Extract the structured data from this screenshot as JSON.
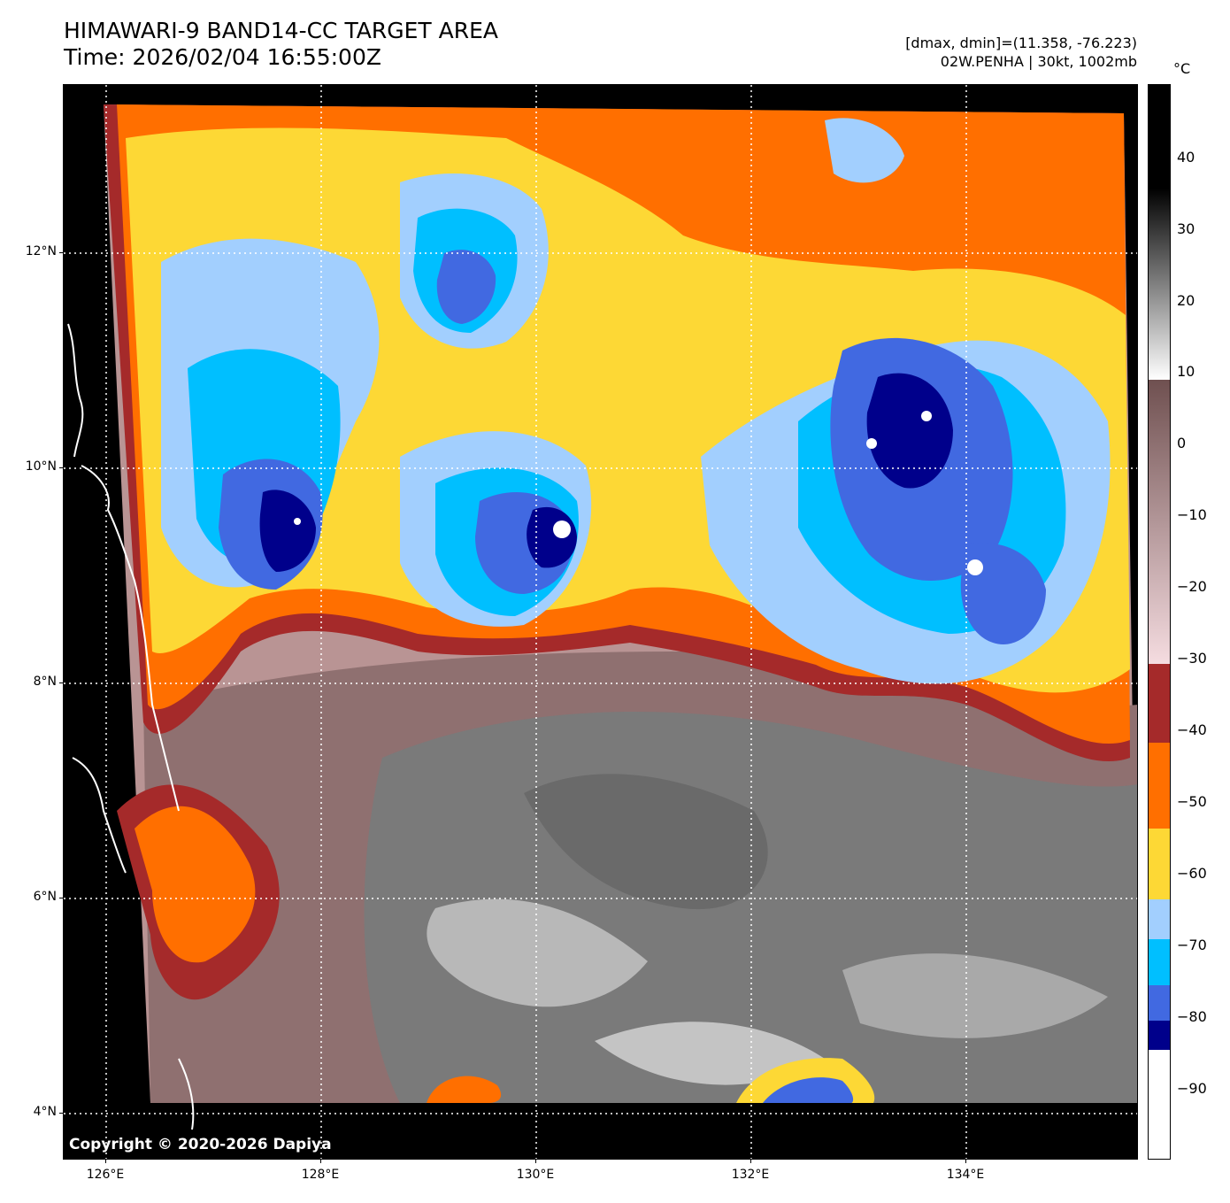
{
  "header": {
    "title_line1": "HIMAWARI-9 BAND14-CC TARGET AREA",
    "title_line2": "Time: 2026/02/04 16:55:00Z",
    "info_line1": "[dmax, dmin]=(11.358, -76.223)",
    "info_line2": "02W.PENHA | 30kt, 1002mb"
  },
  "map": {
    "copyright": "Copyright © 2020-2026 Dapiya",
    "lat_labels": [
      "12°N",
      "10°N",
      "8°N",
      "6°N",
      "4°N"
    ],
    "lon_labels": [
      "126°E",
      "128°E",
      "130°E",
      "132°E",
      "134°E"
    ],
    "coastline_color": "#ffffff",
    "grid_style": "dotted white"
  },
  "colorbar": {
    "unit": "°C",
    "tick_labels": [
      "40",
      "30",
      "20",
      "10",
      "0",
      "−10",
      "−20",
      "−30",
      "−40",
      "−50",
      "−60",
      "−70",
      "−80",
      "−90"
    ],
    "stops": [
      {
        "label": "< -80",
        "color": "#ffffff"
      },
      {
        "label": "-85",
        "color": "#00008b"
      },
      {
        "label": "-80",
        "color": "#4169e1"
      },
      {
        "label": "-70",
        "color": "#00bfff"
      },
      {
        "label": "-65",
        "color": "#a2cffe"
      },
      {
        "label": "-60",
        "color": "#fdd835"
      },
      {
        "label": "-50",
        "color": "#ff6f00"
      },
      {
        "label": "-40",
        "color": "#a52a2a"
      },
      {
        "label": "-30",
        "color": "#f5dce0"
      },
      {
        "label": "10",
        "color": "#6f5050"
      },
      {
        "label": "> 10",
        "color": "#000000"
      }
    ]
  }
}
